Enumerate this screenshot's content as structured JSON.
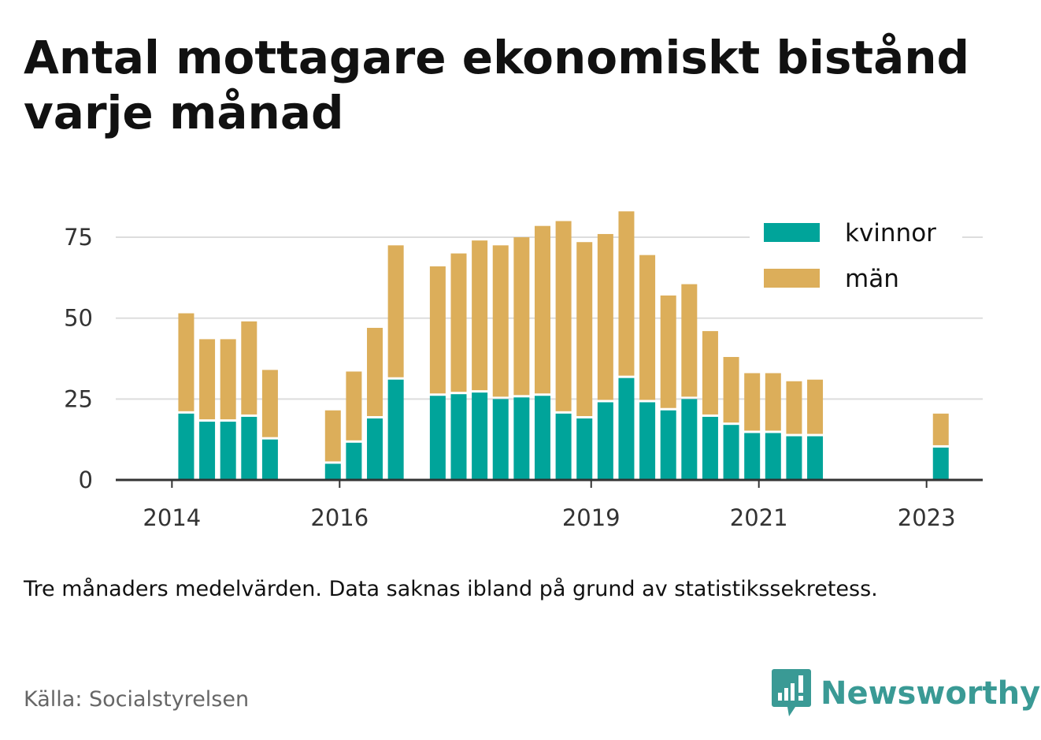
{
  "title": "Antal mottagare ekonomiskt bistånd varje månad",
  "note": "Tre månaders medelvärden. Data saknas ibland på grund av statistikssekretess.",
  "source": "Källa: Socialstyrelsen",
  "brand": {
    "name": "Newsworthy",
    "icon": "newsworthy-logo-icon",
    "color": "#3a9a95"
  },
  "colors": {
    "kvinnor": "#00a49a",
    "man": "#dcae5a",
    "grid": "#dddddd",
    "axis": "#333333"
  },
  "chart_data": {
    "type": "bar",
    "stacked": true,
    "x_tick_labels": [
      "2014",
      "2016",
      "2019",
      "2021",
      "2023"
    ],
    "x_tick_positions": [
      2014.0,
      2016.0,
      2019.0,
      2021.0,
      2023.0
    ],
    "x_range": [
      2013.33,
      2023.67
    ],
    "y_ticks": [
      0,
      25,
      50,
      75
    ],
    "ylim": [
      0,
      85
    ],
    "legend": {
      "position": "top-right",
      "entries": [
        "kvinnor",
        "män"
      ]
    },
    "grid": true,
    "x": [
      2014.17,
      2014.42,
      2014.67,
      2014.92,
      2015.17,
      2015.92,
      2016.17,
      2016.42,
      2016.67,
      2017.17,
      2017.42,
      2017.67,
      2017.92,
      2018.17,
      2018.42,
      2018.67,
      2018.92,
      2019.17,
      2019.42,
      2019.67,
      2019.92,
      2020.17,
      2020.42,
      2020.67,
      2020.92,
      2021.17,
      2021.42,
      2021.67,
      2023.17
    ],
    "series": [
      {
        "name": "kvinnor",
        "values": [
          20.5,
          18,
          18,
          19.5,
          12.5,
          5,
          11.5,
          19,
          31,
          26,
          26.5,
          27,
          25,
          25.5,
          26,
          20.5,
          19,
          24,
          31.5,
          24,
          21.5,
          25,
          19.5,
          17,
          14.5,
          14.5,
          13.5,
          13.5,
          10
        ]
      },
      {
        "name": "män",
        "values": [
          31,
          25.5,
          25.5,
          29.5,
          21.5,
          16.5,
          22,
          28,
          41.5,
          40,
          43.5,
          47,
          47.5,
          49.5,
          52.5,
          59.5,
          54.5,
          52,
          51.5,
          45.5,
          35.5,
          35.5,
          26.5,
          21,
          18.5,
          18.5,
          17,
          17.5,
          10.5
        ]
      }
    ]
  }
}
